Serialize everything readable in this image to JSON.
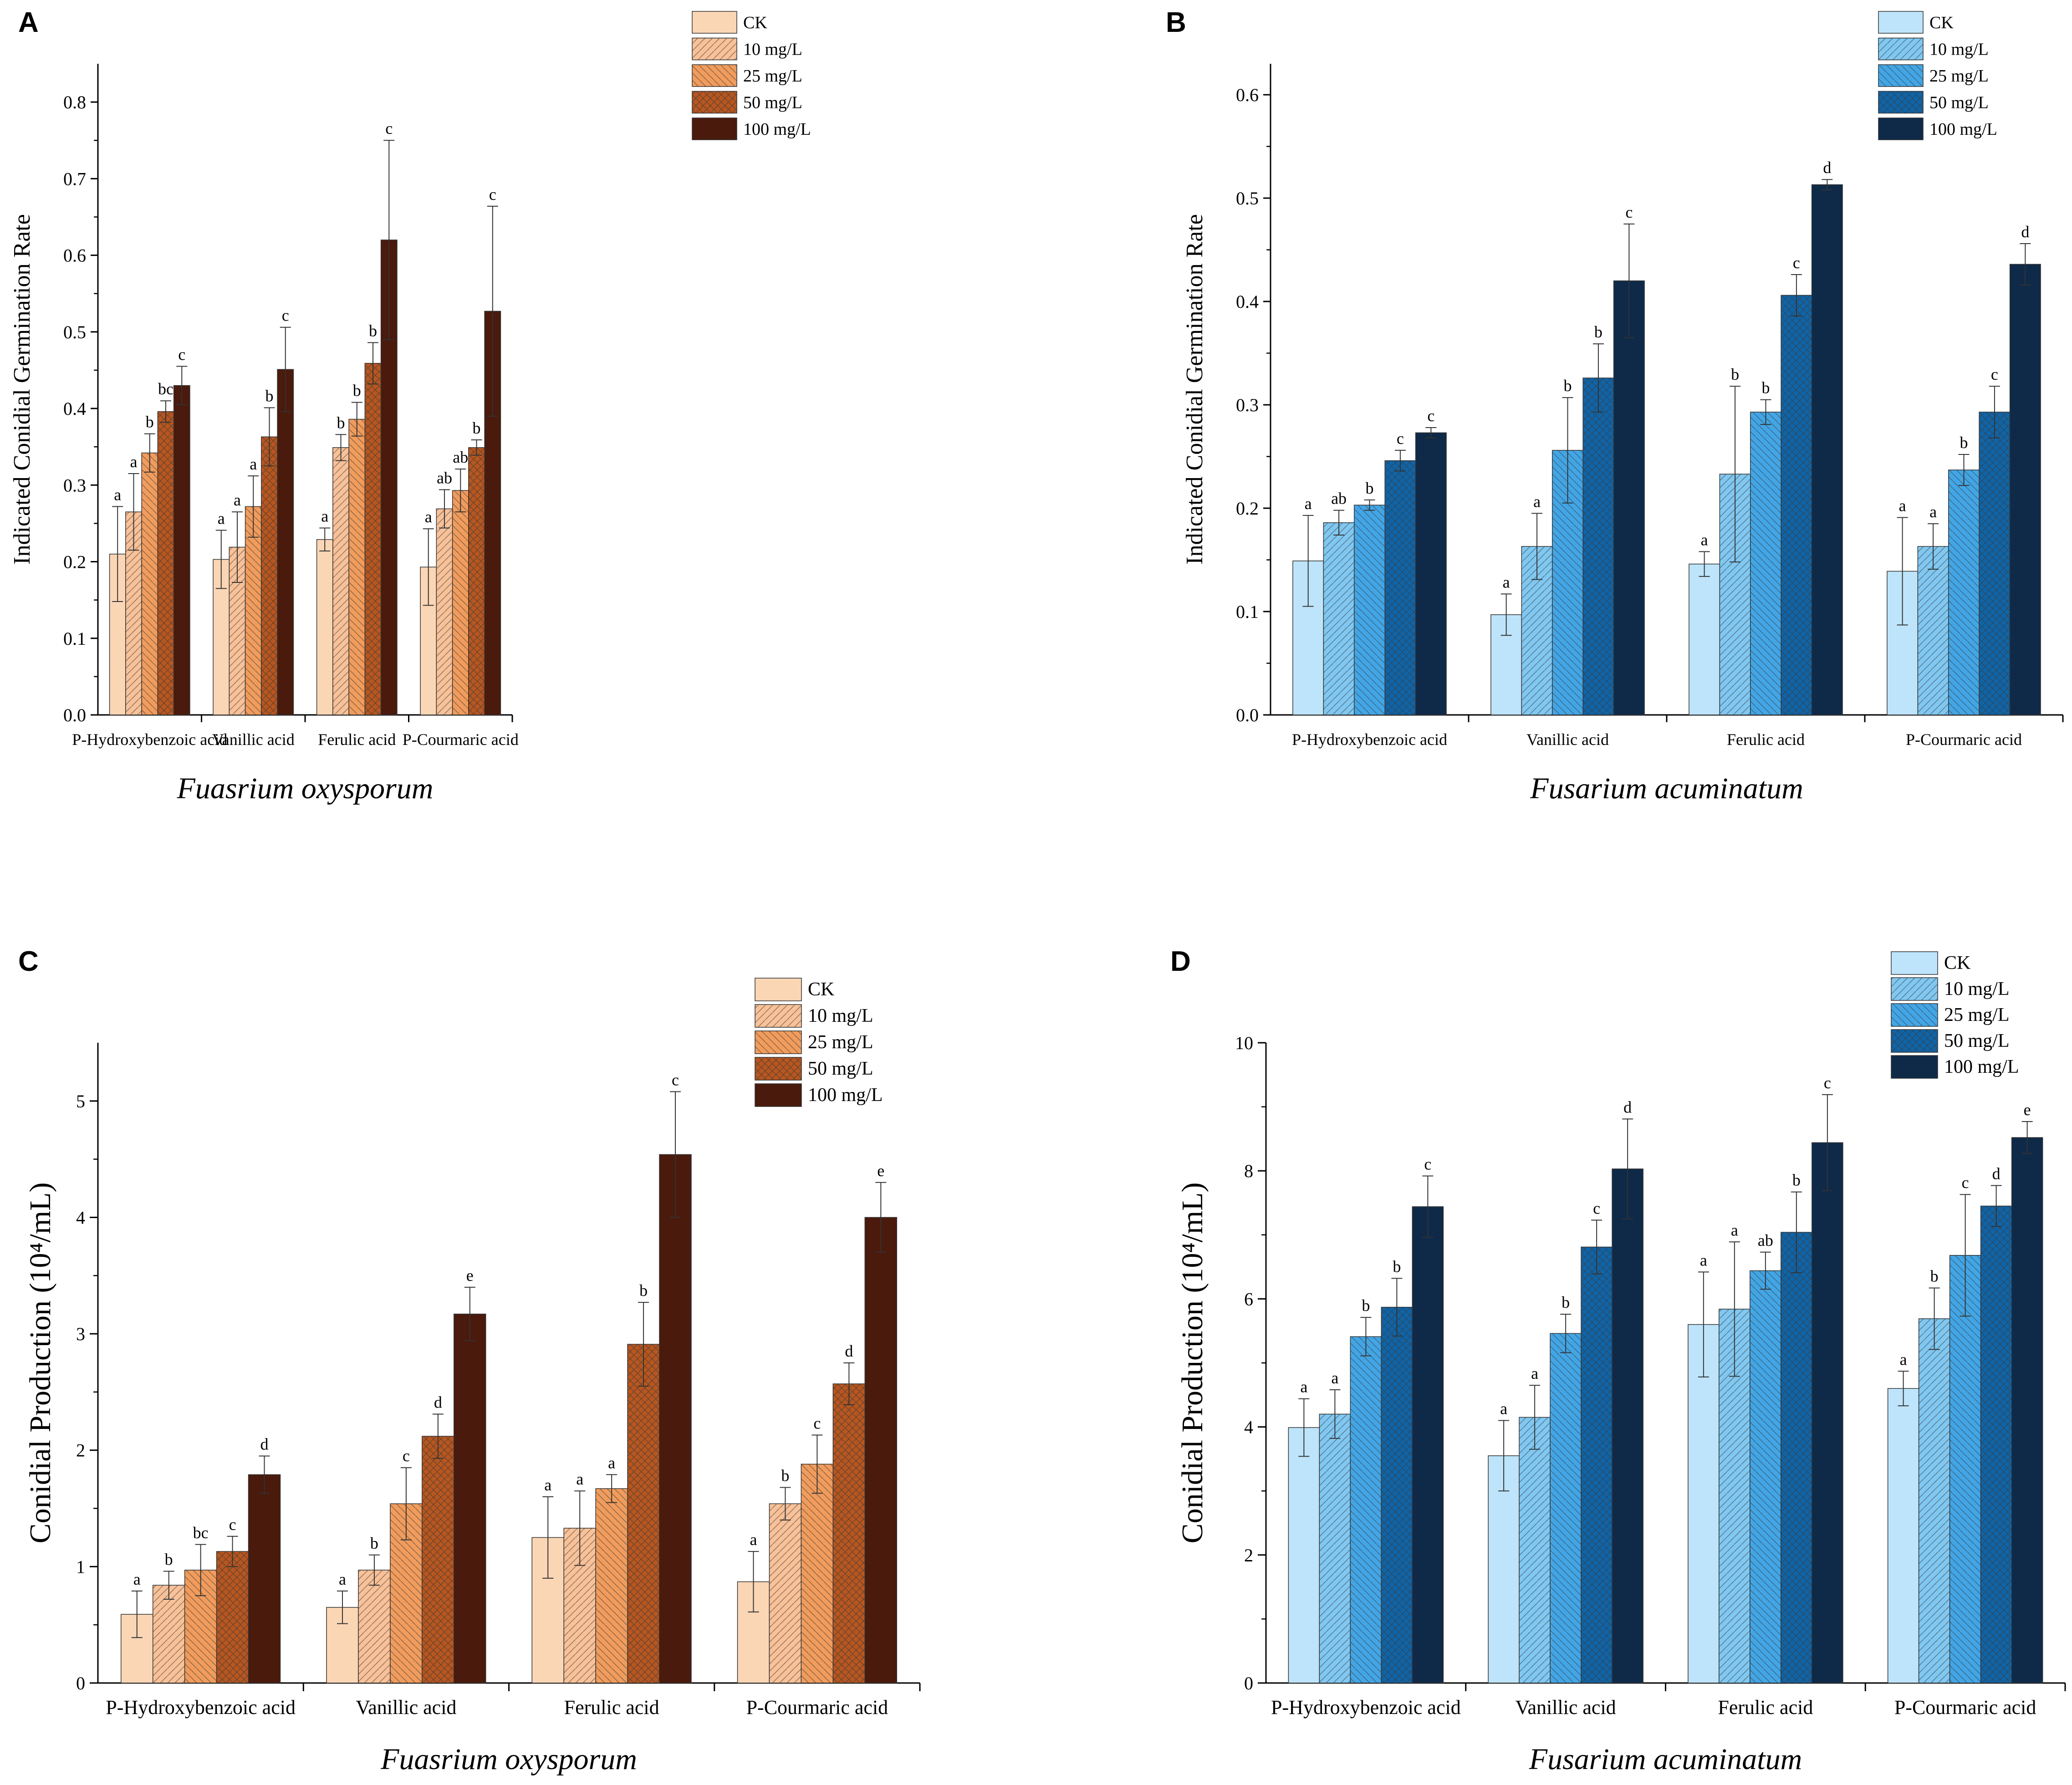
{
  "figure": {
    "panels": [
      "A",
      "B",
      "C",
      "D"
    ]
  },
  "colors": {
    "orange": [
      "#fbd6b5",
      "#f8c198",
      "#f19c5c",
      "#b8561f",
      "#4a1a0d"
    ],
    "blue": [
      "#bde4fa",
      "#80c8f1",
      "#42a6e6",
      "#0f64a8",
      "#0f2a49"
    ]
  },
  "chart_data": [
    {
      "panel": "A",
      "type": "bar",
      "title": "",
      "xlabel": "Fuasrium oxysporum",
      "ylabel": "Indicated Conidial Germination Rate",
      "ylim": [
        0,
        0.85
      ],
      "yticks": [
        "0.0",
        "0.1",
        "0.2",
        "0.3",
        "0.4",
        "0.5",
        "0.6",
        "0.7",
        "0.8"
      ],
      "categories": [
        "P-Hydroxybenzoic acid",
        "Vanillic acid",
        "Ferulic acid",
        "P-Courmaric acid"
      ],
      "legend": [
        "CK",
        "10 mg/L",
        "25 mg/L",
        "50 mg/L",
        "100 mg/L"
      ],
      "legend_position": "top-right",
      "palette": "orange",
      "series": [
        {
          "name": "CK",
          "values": [
            0.21,
            0.203,
            0.229,
            0.193
          ],
          "errors": [
            0.062,
            0.038,
            0.015,
            0.05
          ],
          "letters": [
            "a",
            "a",
            "a",
            "a"
          ]
        },
        {
          "name": "10 mg/L",
          "values": [
            0.265,
            0.219,
            0.349,
            0.269
          ],
          "errors": [
            0.05,
            0.046,
            0.017,
            0.025
          ],
          "letters": [
            "a",
            "a",
            "b",
            "ab"
          ]
        },
        {
          "name": "25 mg/L",
          "values": [
            0.342,
            0.272,
            0.386,
            0.293
          ],
          "errors": [
            0.025,
            0.04,
            0.022,
            0.028
          ],
          "letters": [
            "b",
            "a",
            "b",
            "ab"
          ]
        },
        {
          "name": "50 mg/L",
          "values": [
            0.396,
            0.363,
            0.459,
            0.349
          ],
          "errors": [
            0.014,
            0.038,
            0.027,
            0.01
          ],
          "letters": [
            "bc",
            "b",
            "b",
            "b"
          ]
        },
        {
          "name": "100 mg/L",
          "values": [
            0.43,
            0.451,
            0.62,
            0.527
          ],
          "errors": [
            0.025,
            0.055,
            0.13,
            0.137
          ],
          "letters": [
            "c",
            "c",
            "c",
            "c"
          ]
        }
      ]
    },
    {
      "panel": "B",
      "type": "bar",
      "title": "",
      "xlabel": "Fusarium acuminatum",
      "ylabel": "Indicated Conidial Germination Rate",
      "ylim": [
        0,
        0.63
      ],
      "yticks": [
        "0.0",
        "0.1",
        "0.2",
        "0.3",
        "0.4",
        "0.5",
        "0.6"
      ],
      "categories": [
        "P-Hydroxybenzoic acid",
        "Vanillic acid",
        "Ferulic acid",
        "P-Courmaric acid"
      ],
      "legend": [
        "CK",
        "10 mg/L",
        "25 mg/L",
        "50 mg/L",
        "100 mg/L"
      ],
      "legend_position": "top-right",
      "palette": "blue",
      "series": [
        {
          "name": "CK",
          "values": [
            0.149,
            0.097,
            0.146,
            0.139
          ],
          "errors": [
            0.044,
            0.02,
            0.012,
            0.052
          ],
          "letters": [
            "a",
            "a",
            "a",
            "a"
          ]
        },
        {
          "name": "10 mg/L",
          "values": [
            0.186,
            0.163,
            0.233,
            0.163
          ],
          "errors": [
            0.012,
            0.032,
            0.085,
            0.022
          ],
          "letters": [
            "ab",
            "a",
            "b",
            "a"
          ]
        },
        {
          "name": "25 mg/L",
          "values": [
            0.203,
            0.256,
            0.293,
            0.237
          ],
          "errors": [
            0.005,
            0.051,
            0.012,
            0.015
          ],
          "letters": [
            "b",
            "b",
            "b",
            "b"
          ]
        },
        {
          "name": "50 mg/L",
          "values": [
            0.246,
            0.326,
            0.406,
            0.293
          ],
          "errors": [
            0.01,
            0.033,
            0.02,
            0.025
          ],
          "letters": [
            "c",
            "b",
            "c",
            "c"
          ]
        },
        {
          "name": "100 mg/L",
          "values": [
            0.273,
            0.42,
            0.513,
            0.436
          ],
          "errors": [
            0.005,
            0.055,
            0.005,
            0.02
          ],
          "letters": [
            "c",
            "c",
            "d",
            "d"
          ]
        }
      ]
    },
    {
      "panel": "C",
      "type": "bar",
      "title": "",
      "xlabel": "Fuasrium oxysporum",
      "ylabel": "Conidial Production (10⁴/mL)",
      "ylim": [
        0,
        5.5
      ],
      "yticks": [
        "0",
        "1",
        "2",
        "3",
        "4",
        "5"
      ],
      "categories": [
        "P-Hydroxybenzoic acid",
        "Vanillic acid",
        "Ferulic acid",
        "P-Courmaric acid"
      ],
      "legend": [
        "CK",
        "10 mg/L",
        "25 mg/L",
        "50 mg/L",
        "100 mg/L"
      ],
      "legend_position": "top-right",
      "palette": "orange",
      "series": [
        {
          "name": "CK",
          "values": [
            0.59,
            0.65,
            1.25,
            0.87
          ],
          "errors": [
            0.2,
            0.14,
            0.35,
            0.26
          ],
          "letters": [
            "a",
            "a",
            "a",
            "a"
          ]
        },
        {
          "name": "10 mg/L",
          "values": [
            0.84,
            0.97,
            1.33,
            1.54
          ],
          "errors": [
            0.12,
            0.13,
            0.32,
            0.14
          ],
          "letters": [
            "b",
            "b",
            "a",
            "b"
          ]
        },
        {
          "name": "25 mg/L",
          "values": [
            0.97,
            1.54,
            1.67,
            1.88
          ],
          "errors": [
            0.22,
            0.31,
            0.12,
            0.25
          ],
          "letters": [
            "bc",
            "c",
            "a",
            "c"
          ]
        },
        {
          "name": "50 mg/L",
          "values": [
            1.13,
            2.12,
            2.91,
            2.57
          ],
          "errors": [
            0.13,
            0.19,
            0.36,
            0.18
          ],
          "letters": [
            "c",
            "d",
            "b",
            "d"
          ]
        },
        {
          "name": "100 mg/L",
          "values": [
            1.79,
            3.17,
            4.54,
            4.0
          ],
          "errors": [
            0.16,
            0.23,
            0.54,
            0.3
          ],
          "letters": [
            "d",
            "e",
            "c",
            "e"
          ]
        }
      ]
    },
    {
      "panel": "D",
      "type": "bar",
      "title": "",
      "xlabel": "Fusarium acuminatum",
      "ylabel": "Conidial Production (10⁴/mL)",
      "ylim": [
        0,
        10
      ],
      "yticks": [
        "0",
        "2",
        "4",
        "6",
        "8",
        "10"
      ],
      "categories": [
        "P-Hydroxybenzoic acid",
        "Vanillic acid",
        "Ferulic acid",
        "P-Courmaric acid"
      ],
      "legend": [
        "CK",
        "10 mg/L",
        "25 mg/L",
        "50 mg/L",
        "100 mg/L"
      ],
      "legend_position": "top-right",
      "palette": "blue",
      "series": [
        {
          "name": "CK",
          "values": [
            3.99,
            3.55,
            5.6,
            4.6
          ],
          "errors": [
            0.45,
            0.55,
            0.82,
            0.27
          ],
          "letters": [
            "a",
            "a",
            "a",
            "a"
          ]
        },
        {
          "name": "10 mg/L",
          "values": [
            4.2,
            4.15,
            5.84,
            5.69
          ],
          "errors": [
            0.38,
            0.5,
            1.05,
            0.48
          ],
          "letters": [
            "a",
            "a",
            "a",
            "b"
          ]
        },
        {
          "name": "25 mg/L",
          "values": [
            5.41,
            5.46,
            6.44,
            6.68
          ],
          "errors": [
            0.3,
            0.3,
            0.29,
            0.95
          ],
          "letters": [
            "b",
            "b",
            "ab",
            "c"
          ]
        },
        {
          "name": "50 mg/L",
          "values": [
            5.87,
            6.81,
            7.04,
            7.45
          ],
          "errors": [
            0.45,
            0.42,
            0.63,
            0.32
          ],
          "letters": [
            "b",
            "c",
            "b",
            "d"
          ]
        },
        {
          "name": "100 mg/L",
          "values": [
            7.44,
            8.03,
            8.44,
            8.52
          ],
          "errors": [
            0.48,
            0.78,
            0.75,
            0.25
          ],
          "letters": [
            "c",
            "d",
            "c",
            "e"
          ]
        }
      ]
    }
  ]
}
